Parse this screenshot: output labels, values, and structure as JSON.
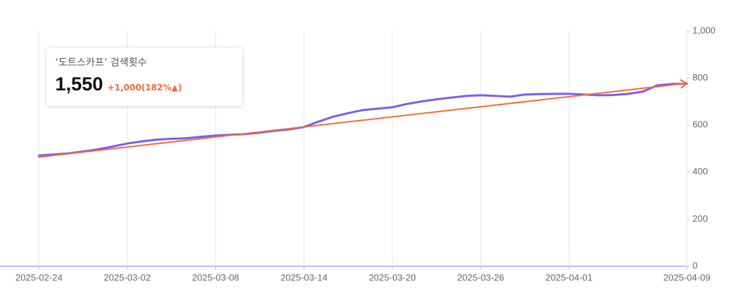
{
  "chart_data": {
    "type": "line",
    "card": {
      "title": "‘도트스카프’ 검색횟수",
      "value": "1,550",
      "change": "+1,000(182%▲)"
    },
    "x": [
      "2025-02-24",
      "2025-02-25",
      "2025-02-26",
      "2025-02-27",
      "2025-02-28",
      "2025-03-01",
      "2025-03-02",
      "2025-03-03",
      "2025-03-04",
      "2025-03-05",
      "2025-03-06",
      "2025-03-07",
      "2025-03-08",
      "2025-03-09",
      "2025-03-10",
      "2025-03-11",
      "2025-03-12",
      "2025-03-13",
      "2025-03-14",
      "2025-03-15",
      "2025-03-16",
      "2025-03-17",
      "2025-03-18",
      "2025-03-19",
      "2025-03-20",
      "2025-03-21",
      "2025-03-22",
      "2025-03-23",
      "2025-03-24",
      "2025-03-25",
      "2025-03-26",
      "2025-03-27",
      "2025-03-28",
      "2025-03-29",
      "2025-03-30",
      "2025-03-31",
      "2025-04-01",
      "2025-04-02",
      "2025-04-03",
      "2025-04-04",
      "2025-04-05",
      "2025-04-06",
      "2025-04-07",
      "2025-04-08",
      "2025-04-09"
    ],
    "series": [
      {
        "color": "#7b5cf0",
        "values": [
          471,
          475,
          480,
          488,
          497,
          509,
          522,
          531,
          538,
          542,
          544,
          550,
          556,
          559,
          562,
          568,
          576,
          582,
          592,
          615,
          636,
          651,
          664,
          670,
          676,
          690,
          701,
          710,
          717,
          724,
          727,
          724,
          721,
          730,
          732,
          733,
          733,
          730,
          727,
          728,
          733,
          742,
          769,
          775,
          776
        ]
      },
      {
        "color": "#f26b3a",
        "x": [
          "2025-02-24",
          "2025-04-09"
        ],
        "values": [
          464,
          778
        ]
      }
    ],
    "xlim": [
      "2025-02-24",
      "2025-04-09"
    ],
    "xticks": [
      "2025-02-24",
      "2025-03-02",
      "2025-03-08",
      "2025-03-14",
      "2025-03-20",
      "2025-03-26",
      "2025-04-01",
      "2025-04-09"
    ],
    "ylim": [
      0,
      1000
    ],
    "yticks": [
      0,
      200,
      400,
      600,
      800,
      {
        "value": 1000,
        "label": "1,000"
      }
    ],
    "grid": true
  }
}
